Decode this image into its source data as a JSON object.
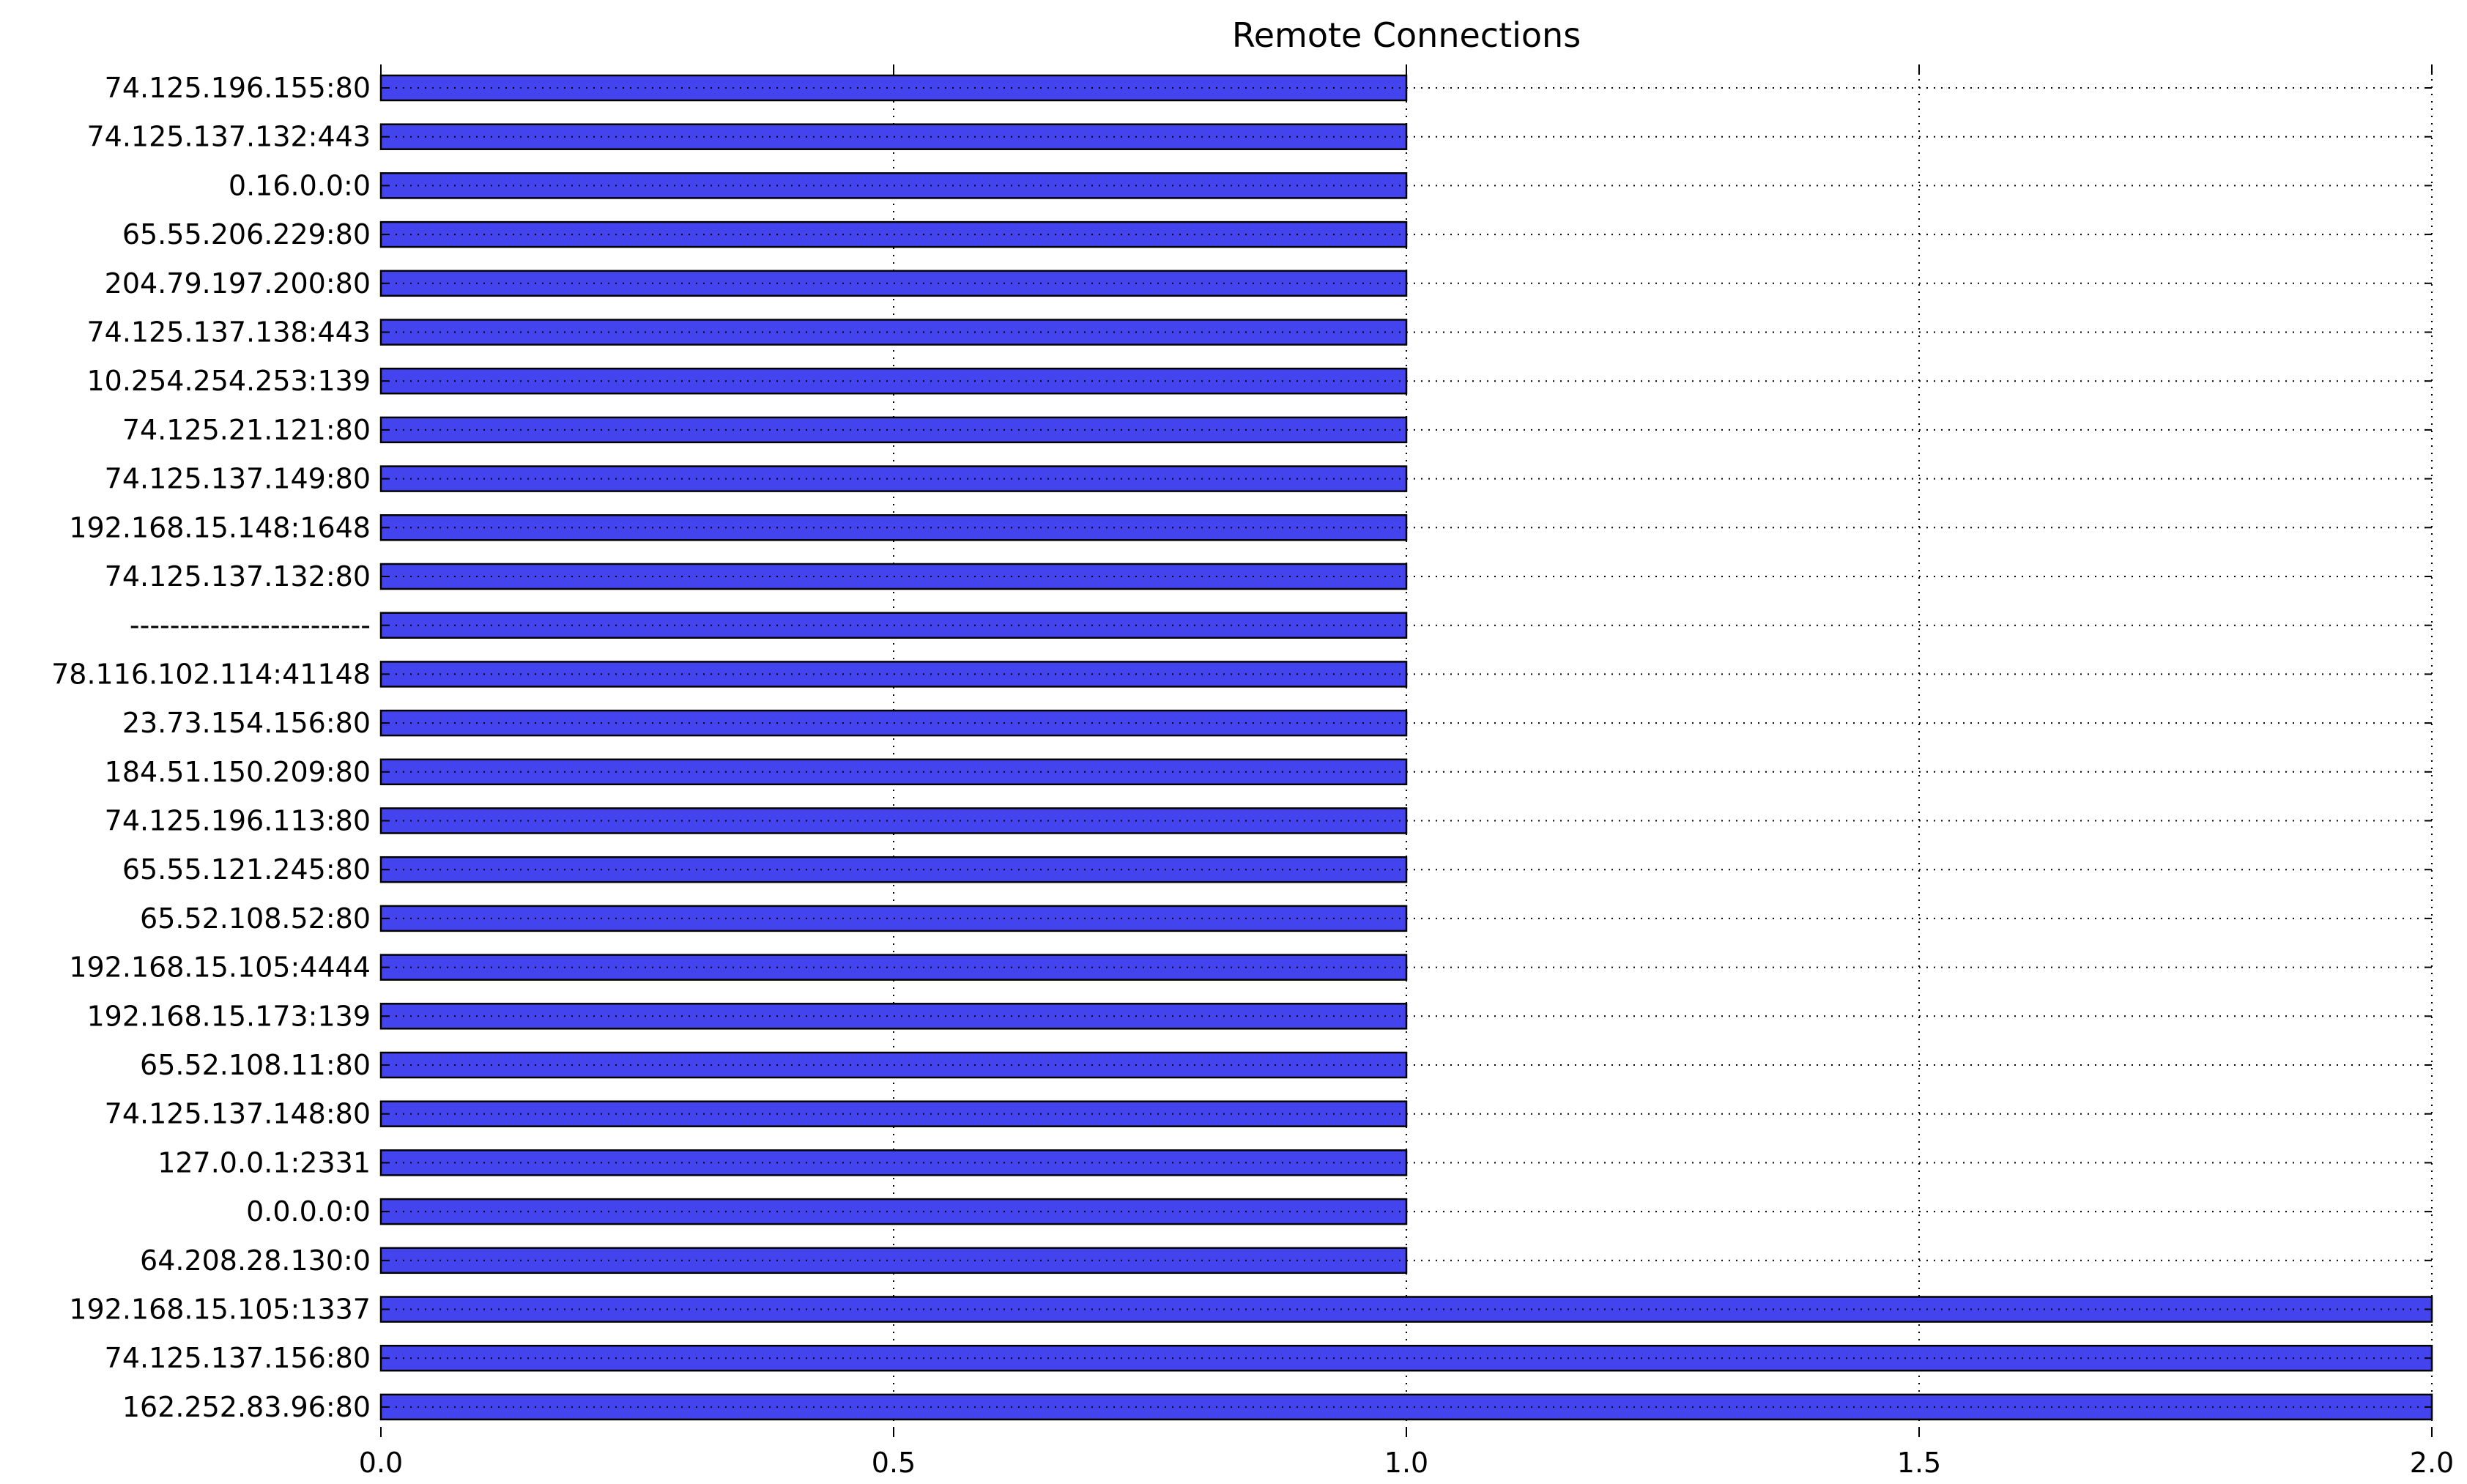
{
  "chart_data": {
    "type": "bar",
    "orientation": "horizontal",
    "title": "Remote Connections",
    "xlabel": "",
    "ylabel": "",
    "xlim": [
      0,
      2.0
    ],
    "xticks": [
      "0.0",
      "0.5",
      "1.0",
      "1.5",
      "2.0"
    ],
    "grid": true,
    "bar_color": "#4444ee",
    "bar_edge_color": "#000000",
    "categories": [
      "74.125.196.155:80",
      "74.125.137.132:443",
      "0.16.0.0:0",
      "65.55.206.229:80",
      "204.79.197.200:80",
      "74.125.137.138:443",
      "10.254.254.253:139",
      "74.125.21.121:80",
      "74.125.137.149:80",
      "192.168.15.148:1648",
      "74.125.137.132:80",
      "------------------------",
      "78.116.102.114:41148",
      "23.73.154.156:80",
      "184.51.150.209:80",
      "74.125.196.113:80",
      "65.55.121.245:80",
      "65.52.108.52:80",
      "192.168.15.105:4444",
      "192.168.15.173:139",
      "65.52.108.11:80",
      "74.125.137.148:80",
      "127.0.0.1:2331",
      "0.0.0.0:0",
      "64.208.28.130:0",
      "192.168.15.105:1337",
      "74.125.137.156:80",
      "162.252.83.96:80"
    ],
    "values": [
      1,
      1,
      1,
      1,
      1,
      1,
      1,
      1,
      1,
      1,
      1,
      1,
      1,
      1,
      1,
      1,
      1,
      1,
      1,
      1,
      1,
      1,
      1,
      1,
      1,
      2,
      2,
      2
    ]
  }
}
